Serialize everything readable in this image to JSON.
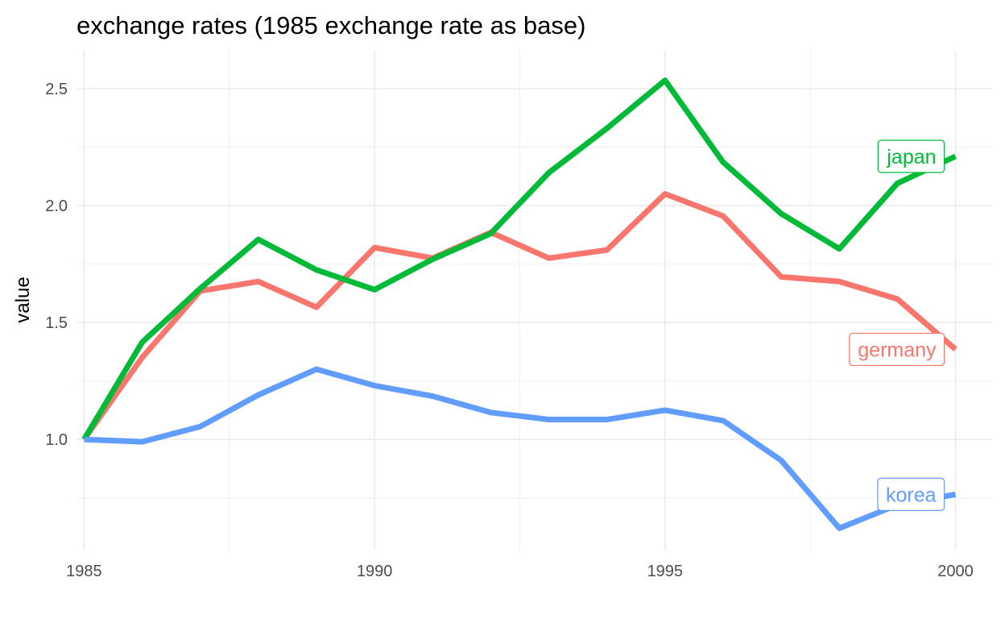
{
  "chart_data": {
    "type": "line",
    "title": "exchange rates (1985 exchange rate as base)",
    "xlabel": "",
    "ylabel": "value",
    "xlim": [
      1984.87,
      2000.63
    ],
    "ylim": [
      0.525,
      2.665
    ],
    "x_ticks": [
      1985,
      1990,
      1995,
      2000
    ],
    "y_ticks": [
      1.0,
      1.5,
      2.0,
      2.5
    ],
    "x_tick_labels": [
      "1985",
      "1990",
      "1995",
      "2000"
    ],
    "y_tick_labels": [
      "1.0",
      "1.5",
      "2.0",
      "2.5"
    ],
    "grid": true,
    "legend": "direct labels at line ends",
    "x": [
      1985,
      1986,
      1987,
      1988,
      1989,
      1990,
      1991,
      1992,
      1993,
      1994,
      1995,
      1996,
      1997,
      1998,
      1999,
      2000
    ],
    "series": [
      {
        "name": "germany",
        "color": "#F8766D",
        "values": [
          1.0,
          1.35,
          1.635,
          1.675,
          1.565,
          1.82,
          1.775,
          1.885,
          1.775,
          1.81,
          2.05,
          1.955,
          1.695,
          1.675,
          1.6,
          1.385
        ]
      },
      {
        "name": "japan",
        "color": "#00BA38",
        "values": [
          1.0,
          1.415,
          1.645,
          1.855,
          1.725,
          1.64,
          1.77,
          1.88,
          2.14,
          2.33,
          2.535,
          2.185,
          1.965,
          1.815,
          2.095,
          2.21
        ]
      },
      {
        "name": "korea",
        "color": "#619CFF",
        "values": [
          1.0,
          0.99,
          1.055,
          1.19,
          1.3,
          1.23,
          1.185,
          1.115,
          1.085,
          1.085,
          1.125,
          1.08,
          0.91,
          0.62,
          0.72,
          0.765
        ]
      }
    ]
  }
}
